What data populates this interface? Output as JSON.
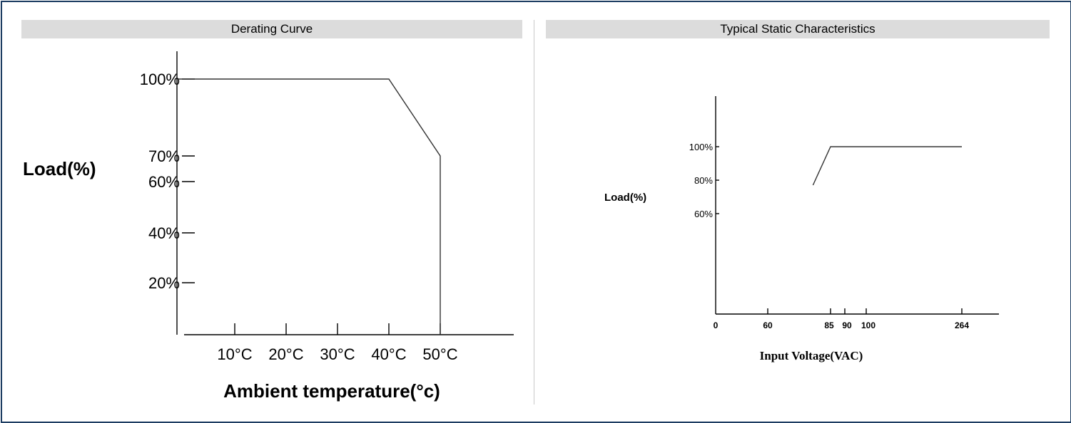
{
  "chart_data": [
    {
      "type": "line",
      "title": "Derating Curve",
      "xlabel": "Ambient temperature(°c)",
      "ylabel": "Load(%)",
      "x_ticks": [
        10,
        20,
        30,
        40,
        50
      ],
      "x_tick_labels": [
        "10°C",
        "20°C",
        "30°C",
        "40°C",
        "50°C"
      ],
      "y_ticks": [
        20,
        40,
        60,
        70,
        100
      ],
      "y_tick_labels": [
        "20%",
        "40%",
        "60%",
        "70%",
        "100%"
      ],
      "xlim": [
        0,
        65
      ],
      "ylim": [
        0,
        110
      ],
      "grid": false,
      "series": [
        {
          "x": [
            -1,
            40,
            50,
            50
          ],
          "y": [
            100,
            100,
            70,
            0
          ]
        }
      ]
    },
    {
      "type": "line",
      "title": "Typical Static Characteristics",
      "xlabel": "Input Voltage(VAC)",
      "ylabel": "Load(%)",
      "x_ticks": [
        0,
        60,
        85,
        90,
        100,
        264
      ],
      "x_tick_labels": [
        "0",
        "60",
        "85",
        "90",
        "100",
        "264"
      ],
      "y_ticks": [
        60,
        80,
        100
      ],
      "y_tick_labels": [
        "60%",
        "80%",
        "100%"
      ],
      "xlim": [
        0,
        300
      ],
      "ylim": [
        0,
        130
      ],
      "grid": false,
      "series": [
        {
          "x": [
            78,
            85,
            90,
            100,
            264
          ],
          "y": [
            77,
            100,
            100,
            100,
            100
          ]
        }
      ]
    }
  ]
}
